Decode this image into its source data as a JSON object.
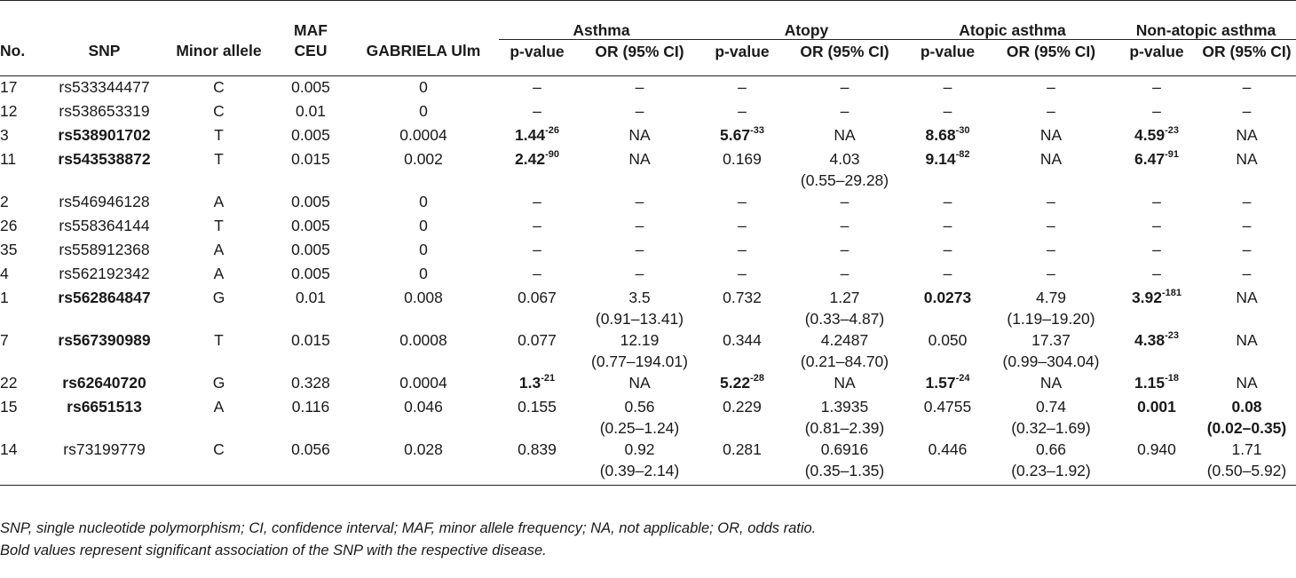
{
  "table": {
    "header_groups": {
      "maf": "MAF",
      "asthma": "Asthma",
      "atopy": "Atopy",
      "atopic_asthma": "Atopic asthma",
      "non_atopic_asthma": "Non-atopic asthma"
    },
    "columns": [
      "No.",
      "SNP",
      "Minor allele",
      "CEU",
      "GABRIELA Ulm",
      "p-value",
      "OR (95% CI)",
      "p-value",
      "OR (95% CI)",
      "p-value",
      "OR (95% CI)",
      "p-value",
      "OR (95% CI)"
    ],
    "rows": [
      {
        "no": "17",
        "snp": "rs533344477",
        "allele": "C",
        "ceu": "0.005",
        "ulm": "0",
        "a_p": "–",
        "a_or": "–",
        "a_ci": "",
        "t_p": "–",
        "t_or": "–",
        "t_ci": "",
        "aa_p": "–",
        "aa_or": "–",
        "aa_ci": "",
        "na_p": "–",
        "na_or": "–",
        "na_ci": ""
      },
      {
        "no": "12",
        "snp": "rs538653319",
        "allele": "C",
        "ceu": "0.01",
        "ulm": "0",
        "a_p": "–",
        "a_or": "–",
        "a_ci": "",
        "t_p": "–",
        "t_or": "–",
        "t_ci": "",
        "aa_p": "–",
        "aa_or": "–",
        "aa_ci": "",
        "na_p": "–",
        "na_or": "–",
        "na_ci": ""
      },
      {
        "no": "3",
        "snp": "rs538901702",
        "allele": "T",
        "ceu": "0.005",
        "ulm": "0.0004",
        "a_p": "1.44",
        "a_p_exp": "-26",
        "a_or": "NA",
        "a_ci": "",
        "t_p": "5.67",
        "t_p_exp": "-33",
        "t_or": "NA",
        "t_ci": "",
        "aa_p": "8.68",
        "aa_p_exp": "-30",
        "aa_or": "NA",
        "aa_ci": "",
        "na_p": "4.59",
        "na_p_exp": "-23",
        "na_or": "NA",
        "na_ci": ""
      },
      {
        "no": "11",
        "snp": "rs543538872",
        "allele": "T",
        "ceu": "0.015",
        "ulm": "0.002",
        "a_p": "2.42",
        "a_p_exp": "-90",
        "a_or": "NA",
        "a_ci": "",
        "t_p": "0.169",
        "t_or": "4.03",
        "t_ci": "(0.55–29.28)",
        "aa_p": "9.14",
        "aa_p_exp": "-82",
        "aa_or": "NA",
        "aa_ci": "",
        "na_p": "6.47",
        "na_p_exp": "-91",
        "na_or": "NA",
        "na_ci": ""
      },
      {
        "no": "2",
        "snp": "rs546946128",
        "allele": "A",
        "ceu": "0.005",
        "ulm": "0",
        "a_p": "–",
        "a_or": "–",
        "a_ci": "",
        "t_p": "–",
        "t_or": "–",
        "t_ci": "",
        "aa_p": "–",
        "aa_or": "–",
        "aa_ci": "",
        "na_p": "–",
        "na_or": "–",
        "na_ci": ""
      },
      {
        "no": "26",
        "snp": "rs558364144",
        "allele": "T",
        "ceu": "0.005",
        "ulm": "0",
        "a_p": "–",
        "a_or": "–",
        "a_ci": "",
        "t_p": "–",
        "t_or": "–",
        "t_ci": "",
        "aa_p": "–",
        "aa_or": "–",
        "aa_ci": "",
        "na_p": "–",
        "na_or": "–",
        "na_ci": ""
      },
      {
        "no": "35",
        "snp": "rs558912368",
        "allele": "A",
        "ceu": "0.005",
        "ulm": "0",
        "a_p": "–",
        "a_or": "–",
        "a_ci": "",
        "t_p": "–",
        "t_or": "–",
        "t_ci": "",
        "aa_p": "–",
        "aa_or": "–",
        "aa_ci": "",
        "na_p": "–",
        "na_or": "–",
        "na_ci": ""
      },
      {
        "no": "4",
        "snp": "rs562192342",
        "allele": "A",
        "ceu": "0.005",
        "ulm": "0",
        "a_p": "–",
        "a_or": "–",
        "a_ci": "",
        "t_p": "–",
        "t_or": "–",
        "t_ci": "",
        "aa_p": "–",
        "aa_or": "–",
        "aa_ci": "",
        "na_p": "–",
        "na_or": "–",
        "na_ci": ""
      },
      {
        "no": "1",
        "snp": "rs562864847",
        "allele": "G",
        "ceu": "0.01",
        "ulm": "0.008",
        "a_p": "0.067",
        "a_or": "3.5",
        "a_ci": "(0.91–13.41)",
        "t_p": "0.732",
        "t_or": "1.27",
        "t_ci": "(0.33–4.87)",
        "aa_p": "0.0273",
        "aa_or": "4.79",
        "aa_ci": "(1.19–19.20)",
        "na_p": "3.92",
        "na_p_exp": "-181",
        "na_or": "NA",
        "na_ci": ""
      },
      {
        "no": "7",
        "snp": "rs567390989",
        "allele": "T",
        "ceu": "0.015",
        "ulm": "0.0008",
        "a_p": "0.077",
        "a_or": "12.19",
        "a_ci": "(0.77–194.01)",
        "t_p": "0.344",
        "t_or": "4.2487",
        "t_ci": "(0.21–84.70)",
        "aa_p": "0.050",
        "aa_or": "17.37",
        "aa_ci": "(0.99–304.04)",
        "na_p": "4.38",
        "na_p_exp": "-23",
        "na_or": "NA",
        "na_ci": ""
      },
      {
        "no": "22",
        "snp": "rs62640720",
        "allele": "G",
        "ceu": "0.328",
        "ulm": "0.0004",
        "a_p": "1.3",
        "a_p_exp": "-21",
        "a_or": "NA",
        "a_ci": "",
        "t_p": "5.22",
        "t_p_exp": "-28",
        "t_or": "NA",
        "t_ci": "",
        "aa_p": "1.57",
        "aa_p_exp": "-24",
        "aa_or": "NA",
        "aa_ci": "",
        "na_p": "1.15",
        "na_p_exp": "-18",
        "na_or": "NA",
        "na_ci": ""
      },
      {
        "no": "15",
        "snp": "rs6651513",
        "allele": "A",
        "ceu": "0.116",
        "ulm": "0.046",
        "a_p": "0.155",
        "a_or": "0.56",
        "a_ci": "(0.25–1.24)",
        "t_p": "0.229",
        "t_or": "1.3935",
        "t_ci": "(0.81–2.39)",
        "aa_p": "0.4755",
        "aa_or": "0.74",
        "aa_ci": "(0.32–1.69)",
        "na_p": "0.001",
        "na_or": "0.08",
        "na_ci": "(0.02–0.35)"
      },
      {
        "no": "14",
        "snp": "rs73199779",
        "allele": "C",
        "ceu": "0.056",
        "ulm": "0.028",
        "a_p": "0.839",
        "a_or": "0.92",
        "a_ci": "(0.39–2.14)",
        "t_p": "0.281",
        "t_or": "0.6916",
        "t_ci": "(0.35–1.35)",
        "aa_p": "0.446",
        "aa_or": "0.66",
        "aa_ci": "(0.23–1.92)",
        "na_p": "0.940",
        "na_or": "1.71",
        "na_ci": "(0.50–5.92)"
      }
    ]
  },
  "footnotes": {
    "abbreviations": "SNP, single nucleotide polymorphism; CI, confidence interval; MAF, minor allele frequency; NA, not applicable; OR, odds ratio.",
    "bold_note": "Bold values represent significant association of the SNP with the respective disease."
  }
}
